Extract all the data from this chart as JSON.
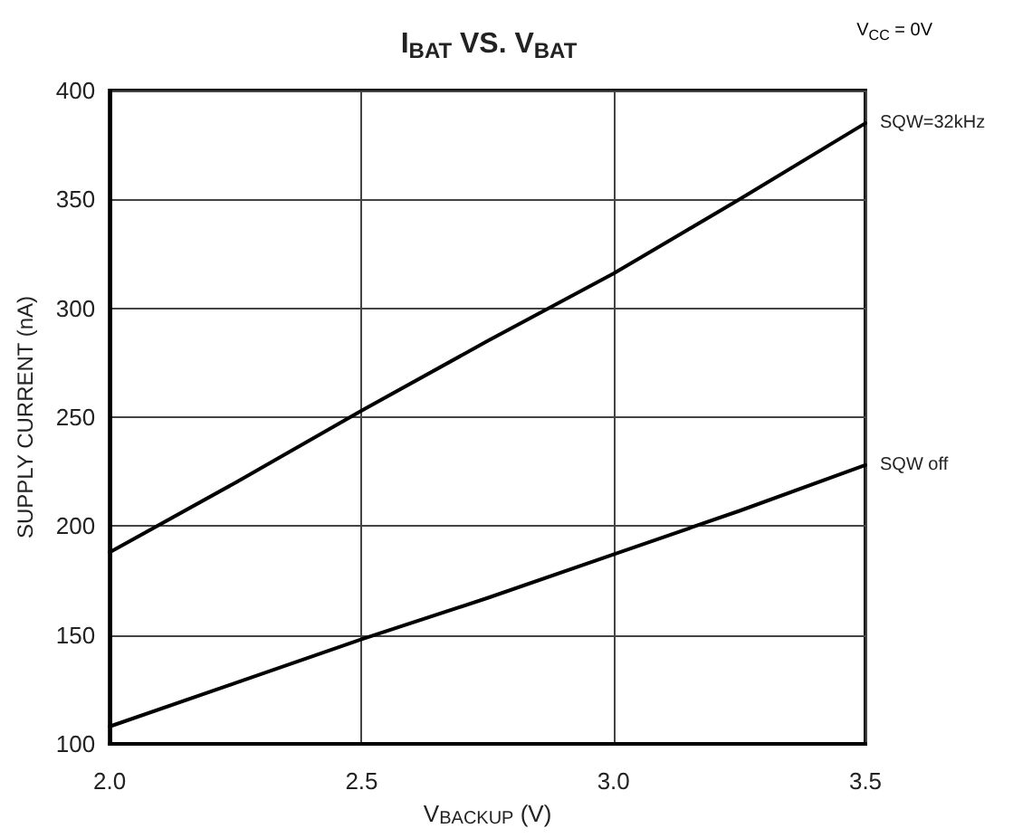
{
  "chart_data": {
    "type": "line",
    "title": "I$_{BAT}$ VS. V$_{BAT}$",
    "xlabel": "V$_{BACKUP}$ (V)",
    "ylabel": "SUPPLY CURRENT (nA)",
    "annotations": [
      "V$_{CC}$ = 0V"
    ],
    "x": [
      2.0,
      2.25,
      2.5,
      2.75,
      3.0,
      3.25,
      3.5
    ],
    "series": [
      {
        "name": "SQW=32kHz",
        "color": "#000000",
        "values": [
          188,
          220,
          253,
          285,
          316,
          350,
          385
        ]
      },
      {
        "name": "SQW off",
        "color": "#000000",
        "values": [
          108,
          128,
          148,
          167,
          187,
          207,
          228
        ]
      }
    ],
    "xlim": [
      2.0,
      3.5
    ],
    "xticks": [
      {
        "value": 2.0,
        "label": "2.0"
      },
      {
        "value": 2.5,
        "label": "2.5"
      },
      {
        "value": 3.0,
        "label": "3.0"
      },
      {
        "value": 3.5,
        "label": "3.5"
      }
    ],
    "ylim": [
      100,
      400
    ],
    "yticks": [
      100,
      150,
      200,
      250,
      300,
      350,
      400
    ],
    "grid": true,
    "legend": false,
    "marker": "none",
    "line_style": "solid"
  }
}
